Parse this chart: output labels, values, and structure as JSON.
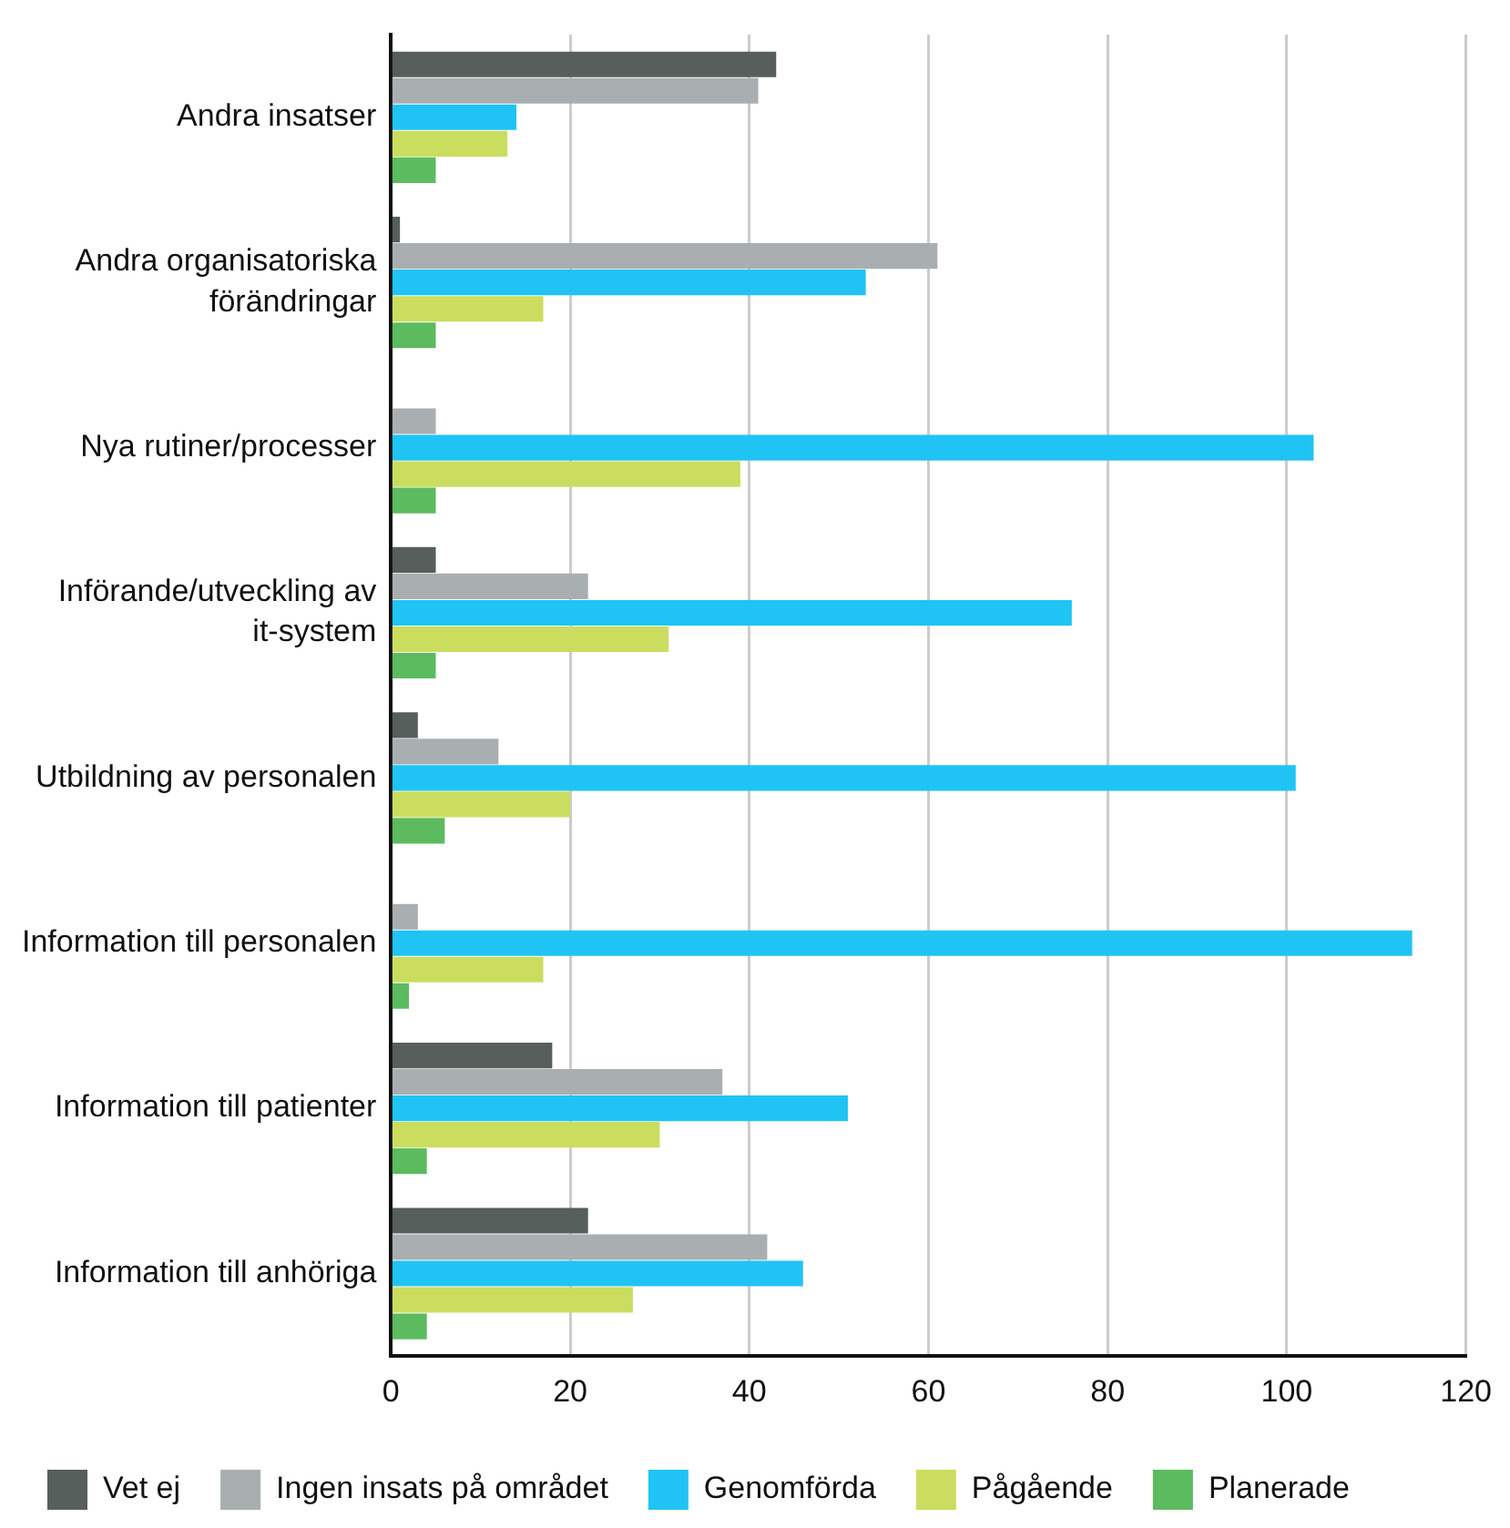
{
  "chart_data": {
    "type": "bar",
    "orientation": "horizontal",
    "categories": [
      "Andra insatser",
      "Andra organisatoriska förändringar",
      "Nya rutiner/processer",
      "Införande/utveckling av it-system",
      "Utbildning av personalen",
      "Information till personalen",
      "Information till patienter",
      "Information till anhöriga"
    ],
    "series": [
      {
        "name": "Vet ej",
        "color": "#565f5c",
        "values": [
          43,
          1,
          0,
          5,
          3,
          0,
          18,
          22
        ]
      },
      {
        "name": "Ingen insats på området",
        "color": "#a9aeb1",
        "values": [
          41,
          61,
          5,
          22,
          12,
          3,
          37,
          42
        ]
      },
      {
        "name": "Genomförda",
        "color": "#20c4f4",
        "values": [
          14,
          53,
          103,
          76,
          101,
          114,
          51,
          46
        ]
      },
      {
        "name": "Pågående",
        "color": "#cbdd5f",
        "values": [
          13,
          17,
          39,
          31,
          20,
          17,
          30,
          27
        ]
      },
      {
        "name": "Planerade",
        "color": "#5dbb5f",
        "values": [
          5,
          5,
          5,
          5,
          6,
          2,
          4,
          4
        ]
      }
    ],
    "xlim": [
      0,
      120
    ],
    "xticks": [
      0,
      20,
      40,
      60,
      80,
      100,
      120
    ],
    "grid": "x",
    "legend": "bottom"
  }
}
